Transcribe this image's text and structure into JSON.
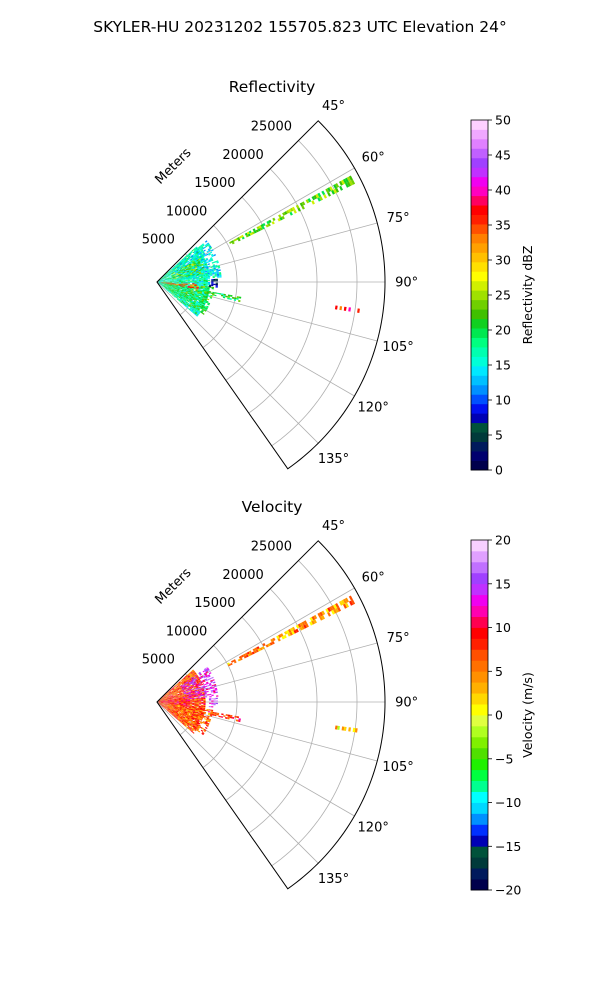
{
  "figure": {
    "title": "SKYLER-HU  20231202  155705.823 UTC Elevation 24°"
  },
  "chart_data": [
    {
      "type": "polar-ppi",
      "title": "Reflectivity",
      "radial_label": "Meters",
      "range_ticks": [
        5000,
        10000,
        15000,
        20000,
        25000
      ],
      "range_tick_labels": [
        "5000",
        "10000",
        "15000",
        "20000",
        "25000"
      ],
      "range_max": 28500,
      "azimuth_range": [
        45,
        145
      ],
      "azimuth_ticks": [
        45,
        60,
        75,
        90,
        105,
        120,
        135
      ],
      "azimuth_tick_labels": [
        "45°",
        "60°",
        "75°",
        "90°",
        "105°",
        "120°",
        "135°"
      ],
      "grid": true,
      "colorbar": {
        "label": "Reflectivity dBZ",
        "min": 0,
        "max": 50,
        "ticks": [
          0,
          5,
          10,
          15,
          20,
          25,
          30,
          35,
          40,
          45,
          50
        ],
        "tick_labels": [
          "0",
          "5",
          "10",
          "15",
          "20",
          "25",
          "30",
          "35",
          "40",
          "45",
          "50"
        ],
        "colors": [
          "#00004c",
          "#00006e",
          "#001a5c",
          "#003a3a",
          "#00523a",
          "#0000b4",
          "#0010f0",
          "#0050ff",
          "#0090ff",
          "#00c0ff",
          "#00e8ff",
          "#00ffd8",
          "#00ffb0",
          "#00ff80",
          "#00e850",
          "#10d020",
          "#40c000",
          "#70d000",
          "#a0e000",
          "#d0f000",
          "#ffff00",
          "#ffe000",
          "#ffc000",
          "#ffa000",
          "#ff8000",
          "#ff5000",
          "#ff2000",
          "#ff0000",
          "#ff0060",
          "#ff00c0",
          "#f000f0",
          "#c030ff",
          "#a040ff",
          "#c060ff",
          "#e080ff",
          "#f0a8ff",
          "#ffd0ff"
        ]
      },
      "echoes": [
        {
          "az_min": 48,
          "az_max": 130,
          "r_min": 200,
          "r_max": 6500,
          "value": 17,
          "density": 0.9
        },
        {
          "az_min": 50,
          "az_max": 85,
          "r_min": 2500,
          "r_max": 8000,
          "value": 15,
          "density": 0.6
        },
        {
          "az_min": 60,
          "az_max": 80,
          "r_min": 2000,
          "r_max": 6000,
          "value": 24,
          "density": 0.35
        },
        {
          "az_min": 95,
          "az_max": 125,
          "r_min": 1000,
          "r_max": 7000,
          "value": 21,
          "density": 0.55
        },
        {
          "az_min": 92,
          "az_max": 100,
          "r_min": 500,
          "r_max": 5000,
          "value": 35,
          "density": 0.5
        },
        {
          "az_min": 87,
          "az_max": 95,
          "r_min": 6500,
          "r_max": 7500,
          "value": 5,
          "density": 0.5
        },
        {
          "az_min": 100,
          "az_max": 103,
          "r_min": 6500,
          "r_max": 10500,
          "value": 20,
          "density": 0.7
        },
        {
          "az_min": 61.2,
          "az_max": 62.8,
          "r_min": 10000,
          "r_max": 27500,
          "value": 23,
          "density": 0.7
        },
        {
          "az_min": 97.5,
          "az_max": 98.5,
          "r_min": 22500,
          "r_max": 25500,
          "value": 37,
          "density": 0.5
        }
      ]
    },
    {
      "type": "polar-ppi",
      "title": "Velocity",
      "radial_label": "Meters",
      "range_ticks": [
        5000,
        10000,
        15000,
        20000,
        25000
      ],
      "range_tick_labels": [
        "5000",
        "10000",
        "15000",
        "20000",
        "25000"
      ],
      "range_max": 28500,
      "azimuth_range": [
        45,
        145
      ],
      "azimuth_ticks": [
        45,
        60,
        75,
        90,
        105,
        120,
        135
      ],
      "azimuth_tick_labels": [
        "45°",
        "60°",
        "75°",
        "90°",
        "105°",
        "120°",
        "135°"
      ],
      "grid": true,
      "colorbar": {
        "label": "Velocity (m/s)",
        "min": -20,
        "max": 20,
        "ticks": [
          -20,
          -15,
          -10,
          -5,
          0,
          5,
          10,
          15,
          20
        ],
        "tick_labels": [
          "−20",
          "−15",
          "−10",
          "−5",
          "0",
          "5",
          "10",
          "15",
          "20"
        ],
        "colors": [
          "#00004c",
          "#001a5c",
          "#003a3a",
          "#00523a",
          "#0000b4",
          "#0030ff",
          "#0090ff",
          "#00d8ff",
          "#00ffff",
          "#00ff90",
          "#00ff40",
          "#20f000",
          "#50e000",
          "#80f000",
          "#b0ff20",
          "#e0ff40",
          "#ffff00",
          "#ffd800",
          "#ffb000",
          "#ff9000",
          "#ff7000",
          "#ff5000",
          "#ff2000",
          "#ff0000",
          "#ff0050",
          "#ff00b0",
          "#f000f0",
          "#c030ff",
          "#a040ff",
          "#c070ff",
          "#e0a0ff",
          "#f8d0ff"
        ]
      },
      "echoes": [
        {
          "az_min": 48,
          "az_max": 130,
          "r_min": 200,
          "r_max": 6000,
          "value": 7,
          "density": 0.9
        },
        {
          "az_min": 55,
          "az_max": 85,
          "r_min": 3500,
          "r_max": 7500,
          "value": 14,
          "density": 0.55
        },
        {
          "az_min": 80,
          "az_max": 98,
          "r_min": 500,
          "r_max": 4000,
          "value": 10,
          "density": 0.7
        },
        {
          "az_min": 98,
          "az_max": 125,
          "r_min": 1500,
          "r_max": 7000,
          "value": 6,
          "density": 0.6
        },
        {
          "az_min": 86,
          "az_max": 95,
          "r_min": 6500,
          "r_max": 7500,
          "value": 15,
          "density": 0.5
        },
        {
          "az_min": 100,
          "az_max": 103,
          "r_min": 6500,
          "r_max": 10500,
          "value": 9,
          "density": 0.7
        },
        {
          "az_min": 61.2,
          "az_max": 62.8,
          "r_min": 10000,
          "r_max": 27500,
          "value": 4,
          "density": 0.7
        },
        {
          "az_min": 97.5,
          "az_max": 98.5,
          "r_min": 22500,
          "r_max": 25500,
          "value": 2,
          "density": 0.5
        }
      ]
    }
  ]
}
